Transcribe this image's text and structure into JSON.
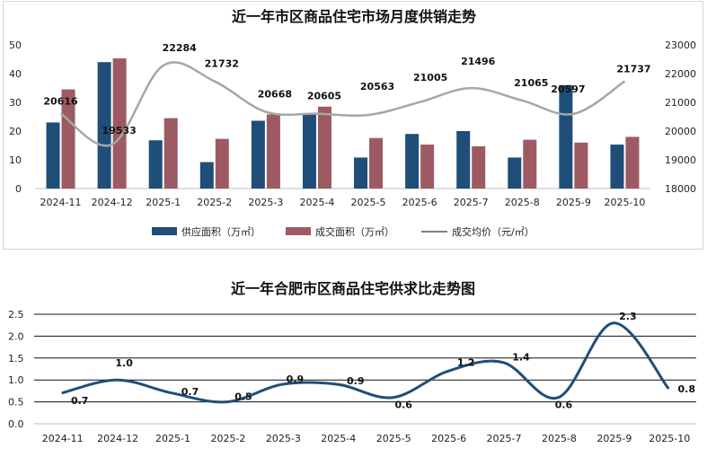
{
  "chart_data": [
    {
      "type": "bar",
      "title": "近一年市区商品住宅市场月度供销走势",
      "categories": [
        "2024-11",
        "2024-12",
        "2025-1",
        "2025-2",
        "2025-3",
        "2025-4",
        "2025-5",
        "2025-6",
        "2025-7",
        "2025-8",
        "2025-9",
        "2025-10"
      ],
      "y_ticks": [
        "0",
        "10",
        "20",
        "30",
        "40",
        "50"
      ],
      "y2_ticks": [
        "18000",
        "19000",
        "20000",
        "21000",
        "22000",
        "23000"
      ],
      "ylim": [
        0,
        50
      ],
      "y2lim": [
        18000,
        23000
      ],
      "series": [
        {
          "name": "供应面积（万㎡）",
          "type": "bar",
          "axis": "left",
          "color": "#1f4e79",
          "values": [
            23,
            44,
            16.8,
            9.2,
            23.6,
            26,
            10.8,
            19,
            20,
            10.8,
            36,
            15.3
          ]
        },
        {
          "name": "成交面积（万㎡）",
          "type": "bar",
          "axis": "left",
          "color": "#9e5a63",
          "values": [
            34.5,
            45.3,
            24.5,
            17.3,
            25.8,
            28.5,
            17.6,
            15.3,
            14.7,
            17,
            16,
            18
          ]
        },
        {
          "name": "成交均价（元/㎡）",
          "type": "line",
          "axis": "right",
          "color": "#a6a6a6",
          "values": [
            20616,
            19533,
            22284,
            21732,
            20668,
            20605,
            20563,
            21005,
            21496,
            21065,
            20597,
            21737
          ],
          "labels": [
            "20616",
            "19533",
            "22284",
            "21732",
            "20668",
            "20605",
            "20563",
            "21005",
            "21496",
            "21065",
            "20597",
            "21737"
          ]
        }
      ],
      "legend_position": "bottom"
    },
    {
      "type": "line",
      "title": "近一年合肥市区商品住宅供求比走势图",
      "categories": [
        "2024-11",
        "2024-12",
        "2025-1",
        "2025-2",
        "2025-3",
        "2025-4",
        "2025-5",
        "2025-6",
        "2025-7",
        "2025-8",
        "2025-9",
        "2025-10"
      ],
      "y_ticks": [
        "0.0",
        "0.5",
        "1.0",
        "1.5",
        "2.0",
        "2.5"
      ],
      "ylim": [
        0,
        2.5
      ],
      "series": [
        {
          "name": "供求比",
          "color": "#1f4e79",
          "values": [
            0.7,
            1.0,
            0.7,
            0.5,
            0.9,
            0.9,
            0.6,
            1.2,
            1.4,
            0.6,
            2.3,
            0.8
          ],
          "labels": [
            "0.7",
            "1.0",
            "0.7",
            "0.5",
            "0.9",
            "0.9",
            "0.6",
            "1.2",
            "1.4",
            "0.6",
            "2.3",
            "0.8"
          ]
        }
      ]
    }
  ]
}
